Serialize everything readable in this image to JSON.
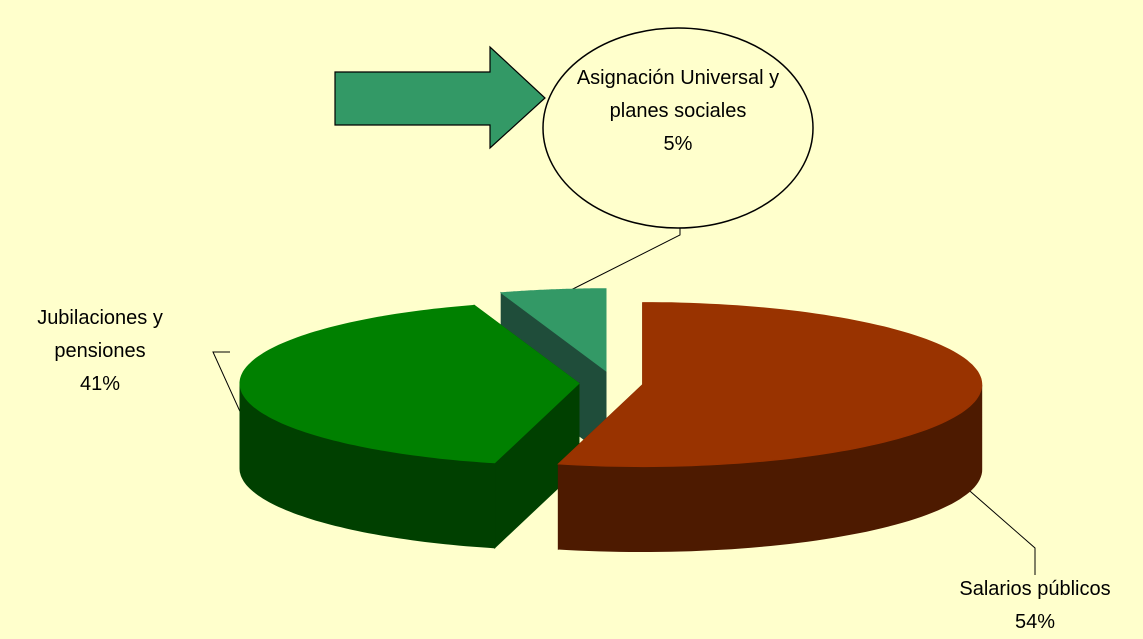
{
  "chart_data": {
    "type": "pie3d",
    "categories": [
      "Salarios públicos",
      "Jubilaciones y pensiones",
      "Asignación Universal y planes sociales"
    ],
    "values": [
      54,
      41,
      5
    ],
    "value_labels": [
      "54%",
      "41%",
      "5%"
    ],
    "colors": [
      "#993300",
      "#008000",
      "#339966"
    ],
    "side_colors": [
      "#4d1a00",
      "#004000",
      "#1f4d3a"
    ]
  }
}
